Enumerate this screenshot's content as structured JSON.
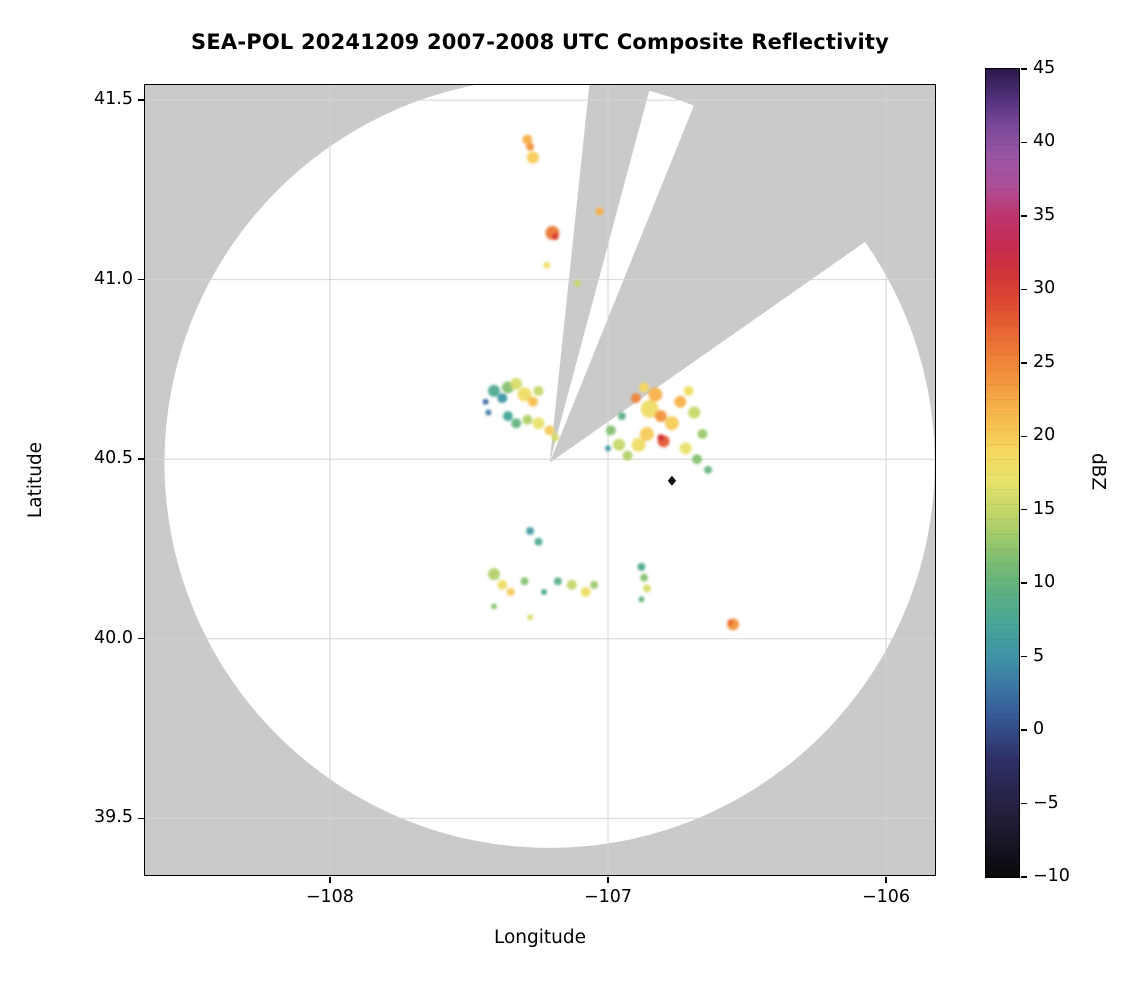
{
  "chart_data": {
    "type": "heatmap",
    "title": "SEA-POL 20241209 2007-2008 UTC Composite Reflectivity",
    "xlabel": "Longitude",
    "ylabel": "Latitude",
    "xlim": [
      -108.665,
      -105.824
    ],
    "ylim": [
      39.342,
      41.542
    ],
    "grid": true,
    "x_ticks": {
      "values": [
        -108,
        -107,
        -106
      ],
      "labels": [
        "−108",
        "−107",
        "−106"
      ]
    },
    "y_ticks": {
      "values": [
        39.5,
        40.0,
        40.5,
        41.0,
        41.5
      ],
      "labels": [
        "39.5",
        "40.0",
        "40.5",
        "41.0",
        "41.5"
      ]
    },
    "colors": {
      "outside": "#cacaca",
      "inside": "#ffffff",
      "grid": "#d4d4d4",
      "spine": "#000000"
    },
    "coverage": {
      "center_lon": -107.21,
      "center_lat": 40.49,
      "radius_lon_deg": 1.385,
      "blocked_sectors_deg": [
        [
          6,
          15
        ],
        [
          22,
          55
        ]
      ]
    },
    "site_marker": {
      "lon": -106.77,
      "lat": 40.44,
      "shape": "diamond",
      "color": "#111111"
    },
    "colorbar": {
      "label": "dBZ",
      "min": -10,
      "max": 45,
      "tick_values": [
        45,
        40,
        35,
        30,
        25,
        20,
        15,
        10,
        5,
        0,
        -5,
        -10
      ],
      "tick_labels": [
        "45",
        "40",
        "35",
        "30",
        "25",
        "20",
        "15",
        "10",
        "5",
        "0",
        "−5",
        "−10"
      ],
      "stops": [
        [
          -10,
          "#09090b"
        ],
        [
          -6,
          "#221e38"
        ],
        [
          -2,
          "#2f2f66"
        ],
        [
          1,
          "#365a96"
        ],
        [
          3,
          "#3c78a4"
        ],
        [
          5,
          "#3f93a6"
        ],
        [
          7,
          "#47a499"
        ],
        [
          9,
          "#58ae87"
        ],
        [
          11,
          "#74b975"
        ],
        [
          13,
          "#9cc86c"
        ],
        [
          15,
          "#c5d768"
        ],
        [
          17,
          "#e8e26b"
        ],
        [
          19,
          "#f6d75f"
        ],
        [
          21,
          "#f6bd4e"
        ],
        [
          23,
          "#f3a242"
        ],
        [
          25,
          "#ef8538"
        ],
        [
          27,
          "#e96833"
        ],
        [
          29,
          "#de4b31"
        ],
        [
          31,
          "#d03538"
        ],
        [
          33,
          "#c62c51"
        ],
        [
          35,
          "#bf356f"
        ],
        [
          37,
          "#ad4f97"
        ],
        [
          39,
          "#9a55a4"
        ],
        [
          41,
          "#7c4a9b"
        ],
        [
          43,
          "#52307c"
        ],
        [
          45,
          "#2a1a4a"
        ]
      ]
    },
    "echoes": [
      [
        -107.29,
        41.39,
        22,
        5
      ],
      [
        -107.27,
        41.34,
        20,
        6
      ],
      [
        -107.28,
        41.37,
        24,
        4
      ],
      [
        -107.03,
        41.19,
        22,
        4
      ],
      [
        -107.2,
        41.13,
        26,
        7
      ],
      [
        -107.19,
        41.12,
        30,
        3.5
      ],
      [
        -107.22,
        41.04,
        18,
        3.5
      ],
      [
        -107.11,
        40.99,
        15,
        3.5
      ],
      [
        -107.41,
        40.69,
        8,
        6
      ],
      [
        -107.38,
        40.67,
        5,
        5
      ],
      [
        -107.36,
        40.7,
        12,
        6
      ],
      [
        -107.33,
        40.71,
        16,
        6
      ],
      [
        -107.3,
        40.68,
        18,
        7
      ],
      [
        -107.27,
        40.66,
        21,
        5
      ],
      [
        -107.25,
        40.69,
        15,
        5
      ],
      [
        -107.36,
        40.62,
        7,
        5
      ],
      [
        -107.33,
        40.6,
        10,
        5
      ],
      [
        -107.29,
        40.61,
        14,
        5
      ],
      [
        -107.25,
        40.6,
        17,
        6
      ],
      [
        -107.21,
        40.58,
        20,
        5
      ],
      [
        -107.43,
        40.63,
        3,
        3
      ],
      [
        -107.44,
        40.66,
        2,
        3
      ],
      [
        -107.19,
        40.56,
        16,
        4
      ],
      [
        -106.99,
        40.58,
        12,
        5
      ],
      [
        -106.96,
        40.54,
        15,
        6
      ],
      [
        -106.93,
        40.51,
        14,
        5
      ],
      [
        -106.89,
        40.54,
        18,
        7
      ],
      [
        -106.86,
        40.57,
        20,
        7
      ],
      [
        -106.85,
        40.64,
        18,
        9
      ],
      [
        -106.83,
        40.68,
        22,
        7
      ],
      [
        -106.81,
        40.62,
        24,
        6
      ],
      [
        -106.8,
        40.55,
        28,
        6
      ],
      [
        -106.81,
        40.56,
        31,
        3.5
      ],
      [
        -106.77,
        40.6,
        20,
        7
      ],
      [
        -106.74,
        40.66,
        22,
        6
      ],
      [
        -106.71,
        40.69,
        18,
        5
      ],
      [
        -106.69,
        40.63,
        15,
        6
      ],
      [
        -106.66,
        40.57,
        13,
        5
      ],
      [
        -106.72,
        40.53,
        17,
        6
      ],
      [
        -106.68,
        40.5,
        12,
        5
      ],
      [
        -106.64,
        40.47,
        10,
        4
      ],
      [
        -106.9,
        40.67,
        25,
        5
      ],
      [
        -106.87,
        40.7,
        19,
        5
      ],
      [
        -106.95,
        40.62,
        9,
        4
      ],
      [
        -107.0,
        40.53,
        6,
        3
      ],
      [
        -107.28,
        40.3,
        6,
        4
      ],
      [
        -107.25,
        40.27,
        8,
        4
      ],
      [
        -107.41,
        40.18,
        14,
        6
      ],
      [
        -107.38,
        40.15,
        18,
        5
      ],
      [
        -107.35,
        40.13,
        20,
        4
      ],
      [
        -107.3,
        40.16,
        12,
        4
      ],
      [
        -107.23,
        40.13,
        7,
        3
      ],
      [
        -107.18,
        40.16,
        9,
        4
      ],
      [
        -107.13,
        40.15,
        15,
        5
      ],
      [
        -107.08,
        40.13,
        18,
        5
      ],
      [
        -107.05,
        40.15,
        13,
        4
      ],
      [
        -107.41,
        40.09,
        12,
        3
      ],
      [
        -107.28,
        40.06,
        16,
        3
      ],
      [
        -106.88,
        40.2,
        8,
        4
      ],
      [
        -106.87,
        40.17,
        12,
        4
      ],
      [
        -106.86,
        40.14,
        16,
        4
      ],
      [
        -106.88,
        40.11,
        10,
        3
      ],
      [
        -106.55,
        40.04,
        24,
        6
      ],
      [
        -106.56,
        40.045,
        27,
        3
      ]
    ]
  }
}
